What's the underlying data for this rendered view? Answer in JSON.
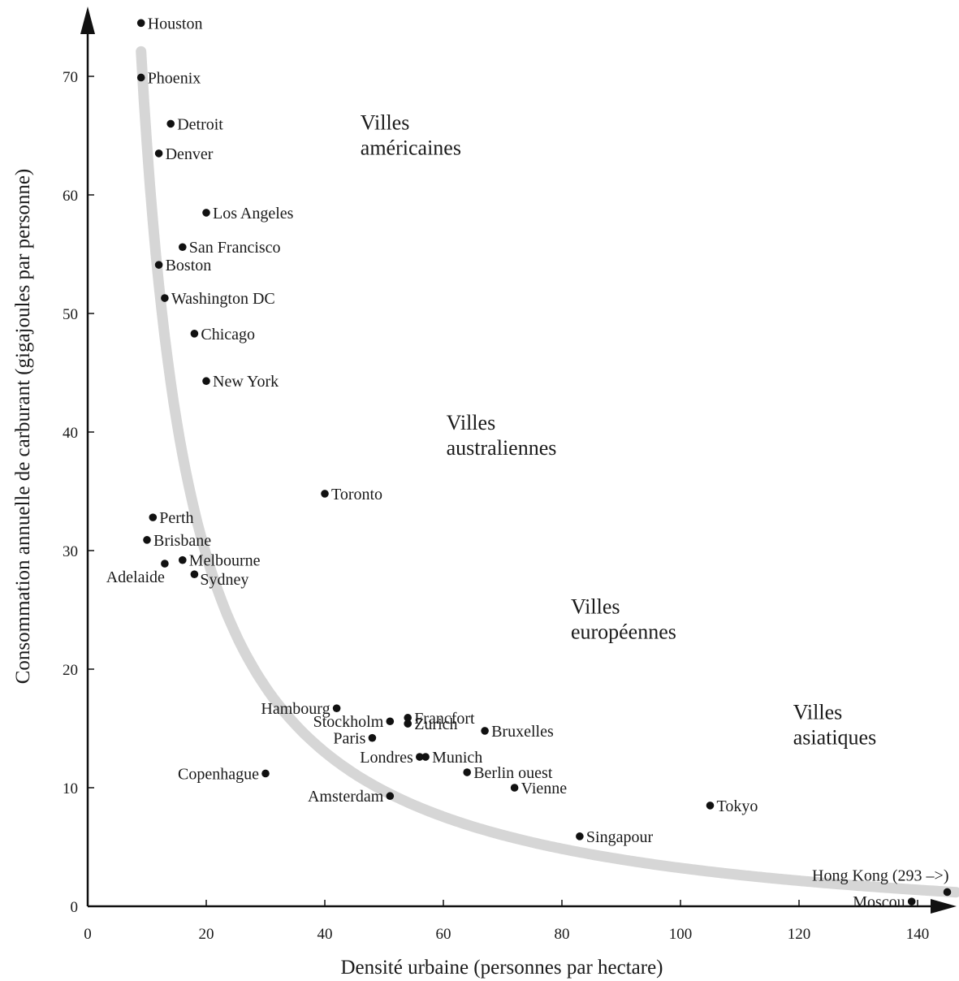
{
  "chart_data": {
    "type": "scatter",
    "xlabel": "Densité urbaine (personnes par hectare)",
    "ylabel": "Consommation annuelle de carburant (gigajoules par personne)",
    "xlim": [
      0,
      146
    ],
    "ylim": [
      0,
      75
    ],
    "x_ticks": [
      0,
      20,
      40,
      60,
      80,
      100,
      120,
      140
    ],
    "y_ticks": [
      0,
      10,
      20,
      30,
      40,
      50,
      60,
      70
    ],
    "grid": false,
    "trend_curve": "hyperbolic fit, light grey thick band",
    "points": [
      {
        "label": "Houston",
        "x": 9,
        "y": 74.5,
        "anchor": "right"
      },
      {
        "label": "Phoenix",
        "x": 9,
        "y": 69.9,
        "anchor": "right"
      },
      {
        "label": "Detroit",
        "x": 14,
        "y": 66.0,
        "anchor": "right"
      },
      {
        "label": "Denver",
        "x": 12,
        "y": 63.5,
        "anchor": "right"
      },
      {
        "label": "Los Angeles",
        "x": 20,
        "y": 58.5,
        "anchor": "right"
      },
      {
        "label": "San Francisco",
        "x": 16,
        "y": 55.6,
        "anchor": "right"
      },
      {
        "label": "Boston",
        "x": 12,
        "y": 54.1,
        "anchor": "right"
      },
      {
        "label": "Washington DC",
        "x": 13,
        "y": 51.3,
        "anchor": "right"
      },
      {
        "label": "Chicago",
        "x": 18,
        "y": 48.3,
        "anchor": "right"
      },
      {
        "label": "New York",
        "x": 20,
        "y": 44.3,
        "anchor": "right"
      },
      {
        "label": "Toronto",
        "x": 40,
        "y": 34.8,
        "anchor": "right"
      },
      {
        "label": "Perth",
        "x": 11,
        "y": 32.8,
        "anchor": "right"
      },
      {
        "label": "Brisbane",
        "x": 10,
        "y": 30.9,
        "anchor": "right"
      },
      {
        "label": "Melbourne",
        "x": 16,
        "y": 29.2,
        "anchor": "right"
      },
      {
        "label": "Adelaide",
        "x": 13,
        "y": 28.9,
        "anchor": "left-below"
      },
      {
        "label": "Sydney",
        "x": 18,
        "y": 28.0,
        "anchor": "right-below"
      },
      {
        "label": "Hambourg",
        "x": 42,
        "y": 16.7,
        "anchor": "left"
      },
      {
        "label": "Francfort",
        "x": 54,
        "y": 15.9,
        "anchor": "right"
      },
      {
        "label": "Stockholm",
        "x": 51,
        "y": 15.6,
        "anchor": "left"
      },
      {
        "label": "Zurich",
        "x": 54,
        "y": 15.4,
        "anchor": "right"
      },
      {
        "label": "Bruxelles",
        "x": 67,
        "y": 14.8,
        "anchor": "right"
      },
      {
        "label": "Paris",
        "x": 48,
        "y": 14.2,
        "anchor": "left"
      },
      {
        "label": "Munich",
        "x": 57,
        "y": 12.6,
        "anchor": "right"
      },
      {
        "label": "Londres",
        "x": 56,
        "y": 12.6,
        "anchor": "left"
      },
      {
        "label": "Berlin ouest",
        "x": 64,
        "y": 11.3,
        "anchor": "right"
      },
      {
        "label": "Copenhague",
        "x": 30,
        "y": 11.2,
        "anchor": "left"
      },
      {
        "label": "Vienne",
        "x": 72,
        "y": 10.0,
        "anchor": "right"
      },
      {
        "label": "Amsterdam",
        "x": 51,
        "y": 9.3,
        "anchor": "left"
      },
      {
        "label": "Tokyo",
        "x": 105,
        "y": 8.5,
        "anchor": "right"
      },
      {
        "label": "Singapour",
        "x": 83,
        "y": 5.9,
        "anchor": "right"
      },
      {
        "label": "Hong Kong (293 –>)",
        "x": 145,
        "y": 1.2,
        "anchor": "above-left"
      },
      {
        "label": "Moscou",
        "x": 139,
        "y": 0.4,
        "anchor": "left"
      }
    ],
    "annotations": [
      {
        "lines": [
          "Villes",
          "américaines"
        ],
        "x": 46,
        "y": 65.5
      },
      {
        "lines": [
          "Villes",
          "australiennes"
        ],
        "x": 60.5,
        "y": 40.2
      },
      {
        "lines": [
          "Villes",
          "européennes"
        ],
        "x": 81.5,
        "y": 24.7
      },
      {
        "lines": [
          "Villes",
          "asiatiques"
        ],
        "x": 119,
        "y": 15.8
      }
    ]
  }
}
